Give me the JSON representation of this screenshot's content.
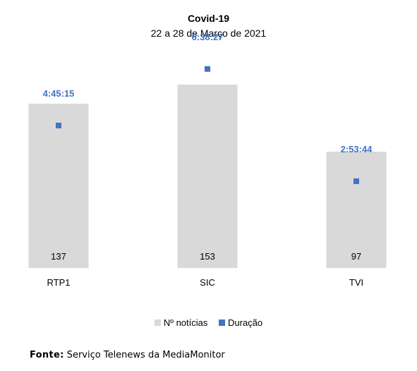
{
  "chart_data": {
    "type": "bar",
    "title": "Covid-19",
    "subtitle": "22 a 28 de Março de 2021",
    "categories": [
      "RTP1",
      "SIC",
      "TVI"
    ],
    "series": [
      {
        "name": "Nº notícias",
        "type": "bar",
        "values": [
          137,
          153,
          97
        ],
        "color": "#d9d9d9"
      },
      {
        "name": "Duração",
        "type": "scatter",
        "values": [
          "4:45:15",
          "6:38:27",
          "2:53:44"
        ],
        "color": "#4472c4"
      }
    ],
    "ylim_bars": [
      0,
      200
    ],
    "ylim_duration_seconds": [
      0,
      28800
    ],
    "legend_position": "bottom",
    "grid": false
  },
  "legend": {
    "bars_label": "Nº notícias",
    "markers_label": "Duração"
  },
  "source": {
    "label": "Fonte:",
    "text": " Serviço Telenews da MediaMonitor"
  }
}
